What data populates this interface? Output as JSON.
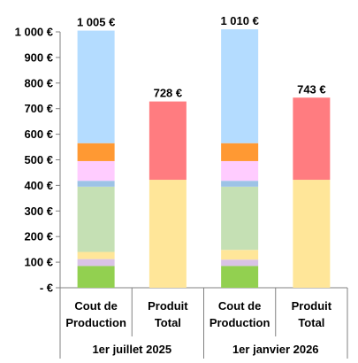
{
  "chart_data": {
    "type": "bar",
    "stacked": true,
    "ylim": [
      0,
      1000
    ],
    "yticks": [
      0,
      100,
      200,
      300,
      400,
      500,
      600,
      700,
      800,
      900,
      1000
    ],
    "ytick_labels": [
      "-  €",
      "100 €",
      "200 €",
      "300 €",
      "400 €",
      "500 €",
      "600 €",
      "700 €",
      "800 €",
      "900 €",
      "1 000 €"
    ],
    "grid": false,
    "legend": "none",
    "groups": [
      {
        "label": "1er juillet 2025",
        "bars": [
          {
            "label_line1": "Cout de",
            "label_line2": "Production",
            "total_label": "1 005 €",
            "segments": [
              {
                "value": 85,
                "color": "#92d050"
              },
              {
                "value": 27,
                "color": "#d9c3e6"
              },
              {
                "value": 28,
                "color": "#ffe699"
              },
              {
                "value": 255,
                "color": "#c5e0b4"
              },
              {
                "value": 23,
                "color": "#9dc3e6"
              },
              {
                "value": 77,
                "color": "#ffccff"
              },
              {
                "value": 70,
                "color": "#ff9933"
              },
              {
                "value": 440,
                "color": "#b4dcff"
              }
            ]
          },
          {
            "label_line1": "Produit",
            "label_line2": "Total",
            "total_label": "728 €",
            "segments": [
              {
                "value": 422,
                "color": "#ffe699"
              },
              {
                "value": 306,
                "color": "#ff7c80"
              }
            ]
          }
        ]
      },
      {
        "label": "1er janvier 2026",
        "bars": [
          {
            "label_line1": "Cout de",
            "label_line2": "Production",
            "total_label": "1 010 €",
            "segments": [
              {
                "value": 85,
                "color": "#92d050"
              },
              {
                "value": 25,
                "color": "#d9c3e6"
              },
              {
                "value": 38,
                "color": "#ffe699"
              },
              {
                "value": 247,
                "color": "#c5e0b4"
              },
              {
                "value": 23,
                "color": "#9dc3e6"
              },
              {
                "value": 77,
                "color": "#ffccff"
              },
              {
                "value": 70,
                "color": "#ff9933"
              },
              {
                "value": 445,
                "color": "#b4dcff"
              }
            ]
          },
          {
            "label_line1": "Produit",
            "label_line2": "Total",
            "total_label": "743 €",
            "segments": [
              {
                "value": 422,
                "color": "#ffe699"
              },
              {
                "value": 321,
                "color": "#ff7c80"
              }
            ]
          }
        ]
      }
    ]
  }
}
